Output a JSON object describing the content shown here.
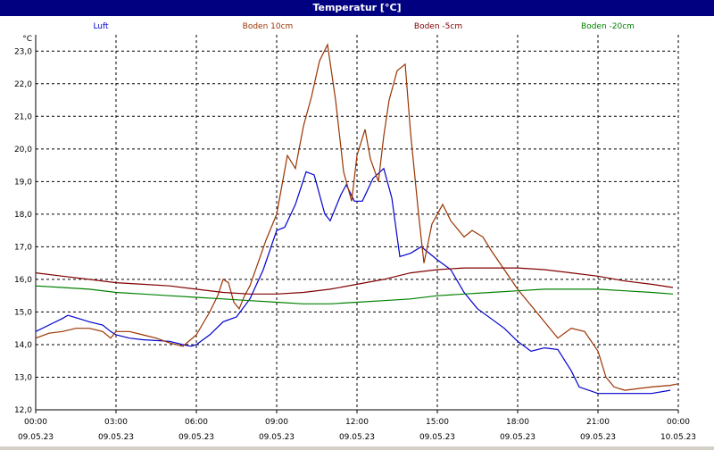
{
  "window_title": "Temperatur [°C]",
  "chart_data": {
    "type": "line",
    "title": "Temperatur [°C]",
    "ylabel": "°C",
    "ylim": [
      12.0,
      23.5
    ],
    "yticks": [
      "12,0",
      "13,0",
      "14,0",
      "15,0",
      "16,0",
      "17,0",
      "18,0",
      "19,0",
      "20,0",
      "21,0",
      "22,0",
      "23,0"
    ],
    "xlim": [
      0,
      24
    ],
    "xticks": [
      {
        "time": "00:00",
        "date": "09.05.23"
      },
      {
        "time": "03:00",
        "date": "09.05.23"
      },
      {
        "time": "06:00",
        "date": "09.05.23"
      },
      {
        "time": "09:00",
        "date": "09.05.23"
      },
      {
        "time": "12:00",
        "date": "09.05.23"
      },
      {
        "time": "15:00",
        "date": "09.05.23"
      },
      {
        "time": "18:00",
        "date": "09.05.23"
      },
      {
        "time": "21:00",
        "date": "09.05.23"
      },
      {
        "time": "00:00",
        "date": "10.05.23"
      }
    ],
    "grid": true,
    "legend_position": "top",
    "series": [
      {
        "name": "Luft",
        "color": "#0000cc",
        "points": [
          [
            0,
            14.4
          ],
          [
            0.5,
            14.6
          ],
          [
            1,
            14.8
          ],
          [
            1.2,
            14.9
          ],
          [
            1.6,
            14.8
          ],
          [
            2,
            14.7
          ],
          [
            2.5,
            14.6
          ],
          [
            2.8,
            14.4
          ],
          [
            3,
            14.3
          ],
          [
            3.5,
            14.2
          ],
          [
            4,
            14.15
          ],
          [
            5,
            14.1
          ],
          [
            5.5,
            14.0
          ],
          [
            5.8,
            13.95
          ],
          [
            6,
            14.0
          ],
          [
            6.5,
            14.3
          ],
          [
            7,
            14.7
          ],
          [
            7.5,
            14.85
          ],
          [
            8,
            15.4
          ],
          [
            8.5,
            16.3
          ],
          [
            9,
            17.5
          ],
          [
            9.3,
            17.6
          ],
          [
            9.7,
            18.3
          ],
          [
            10.1,
            19.3
          ],
          [
            10.4,
            19.2
          ],
          [
            10.8,
            18.0
          ],
          [
            11.0,
            17.8
          ],
          [
            11.4,
            18.6
          ],
          [
            11.6,
            18.9
          ],
          [
            11.9,
            18.4
          ],
          [
            12.2,
            18.4
          ],
          [
            12.6,
            19.1
          ],
          [
            13.0,
            19.4
          ],
          [
            13.3,
            18.5
          ],
          [
            13.6,
            16.7
          ],
          [
            14.0,
            16.8
          ],
          [
            14.4,
            17.0
          ],
          [
            15.0,
            16.6
          ],
          [
            15.5,
            16.3
          ],
          [
            16.0,
            15.6
          ],
          [
            16.5,
            15.1
          ],
          [
            17.0,
            14.8
          ],
          [
            17.5,
            14.5
          ],
          [
            18.0,
            14.1
          ],
          [
            18.5,
            13.8
          ],
          [
            19.0,
            13.9
          ],
          [
            19.5,
            13.85
          ],
          [
            20.0,
            13.2
          ],
          [
            20.3,
            12.7
          ],
          [
            21.0,
            12.5
          ],
          [
            22.0,
            12.5
          ],
          [
            23.0,
            12.5
          ],
          [
            23.7,
            12.6
          ]
        ]
      },
      {
        "name": "Boden 10cm",
        "color": "#993300",
        "points": [
          [
            0,
            14.2
          ],
          [
            0.5,
            14.35
          ],
          [
            1,
            14.4
          ],
          [
            1.5,
            14.5
          ],
          [
            2,
            14.5
          ],
          [
            2.5,
            14.4
          ],
          [
            2.8,
            14.2
          ],
          [
            3,
            14.4
          ],
          [
            3.5,
            14.4
          ],
          [
            4,
            14.3
          ],
          [
            4.5,
            14.2
          ],
          [
            5,
            14.05
          ],
          [
            5.5,
            13.95
          ],
          [
            6,
            14.3
          ],
          [
            6.5,
            15.0
          ],
          [
            6.8,
            15.5
          ],
          [
            7.0,
            16.0
          ],
          [
            7.2,
            15.9
          ],
          [
            7.4,
            15.3
          ],
          [
            7.6,
            15.1
          ],
          [
            7.8,
            15.5
          ],
          [
            8.0,
            15.8
          ],
          [
            8.3,
            16.5
          ],
          [
            8.6,
            17.2
          ],
          [
            9.0,
            18.0
          ],
          [
            9.4,
            19.8
          ],
          [
            9.7,
            19.4
          ],
          [
            10.0,
            20.7
          ],
          [
            10.3,
            21.6
          ],
          [
            10.6,
            22.7
          ],
          [
            10.9,
            23.2
          ],
          [
            11.2,
            21.5
          ],
          [
            11.5,
            19.3
          ],
          [
            11.8,
            18.4
          ],
          [
            12.0,
            19.8
          ],
          [
            12.3,
            20.6
          ],
          [
            12.5,
            19.7
          ],
          [
            12.8,
            19.0
          ],
          [
            13.0,
            20.4
          ],
          [
            13.2,
            21.5
          ],
          [
            13.5,
            22.4
          ],
          [
            13.8,
            22.6
          ],
          [
            14.0,
            20.5
          ],
          [
            14.3,
            18.0
          ],
          [
            14.5,
            16.5
          ],
          [
            14.8,
            17.7
          ],
          [
            15.2,
            18.3
          ],
          [
            15.5,
            17.8
          ],
          [
            16.0,
            17.3
          ],
          [
            16.3,
            17.5
          ],
          [
            16.7,
            17.3
          ],
          [
            17.0,
            16.9
          ],
          [
            17.5,
            16.3
          ],
          [
            18.0,
            15.7
          ],
          [
            18.5,
            15.2
          ],
          [
            19.0,
            14.7
          ],
          [
            19.5,
            14.2
          ],
          [
            20.0,
            14.5
          ],
          [
            20.5,
            14.4
          ],
          [
            21.0,
            13.8
          ],
          [
            21.3,
            13.0
          ],
          [
            21.6,
            12.7
          ],
          [
            22.0,
            12.6
          ],
          [
            23.0,
            12.7
          ],
          [
            23.7,
            12.75
          ],
          [
            24,
            12.8
          ]
        ]
      },
      {
        "name": "Boden -5cm",
        "color": "#800000",
        "points": [
          [
            0,
            16.2
          ],
          [
            1,
            16.1
          ],
          [
            2,
            16.0
          ],
          [
            3,
            15.9
          ],
          [
            4,
            15.85
          ],
          [
            5,
            15.8
          ],
          [
            6,
            15.7
          ],
          [
            7,
            15.6
          ],
          [
            8,
            15.55
          ],
          [
            9,
            15.55
          ],
          [
            10,
            15.6
          ],
          [
            11,
            15.7
          ],
          [
            12,
            15.85
          ],
          [
            13,
            16.0
          ],
          [
            14,
            16.2
          ],
          [
            15,
            16.3
          ],
          [
            16,
            16.35
          ],
          [
            17,
            16.35
          ],
          [
            18,
            16.35
          ],
          [
            19,
            16.3
          ],
          [
            20,
            16.2
          ],
          [
            21,
            16.1
          ],
          [
            22,
            15.95
          ],
          [
            23,
            15.85
          ],
          [
            23.8,
            15.75
          ]
        ]
      },
      {
        "name": "Boden -20cm",
        "color": "#008000",
        "points": [
          [
            0,
            15.8
          ],
          [
            1,
            15.75
          ],
          [
            2,
            15.7
          ],
          [
            3,
            15.6
          ],
          [
            4,
            15.55
          ],
          [
            5,
            15.5
          ],
          [
            6,
            15.45
          ],
          [
            7,
            15.4
          ],
          [
            8,
            15.35
          ],
          [
            9,
            15.3
          ],
          [
            10,
            15.25
          ],
          [
            11,
            15.25
          ],
          [
            12,
            15.3
          ],
          [
            13,
            15.35
          ],
          [
            14,
            15.4
          ],
          [
            15,
            15.5
          ],
          [
            16,
            15.55
          ],
          [
            17,
            15.6
          ],
          [
            18,
            15.65
          ],
          [
            19,
            15.7
          ],
          [
            20,
            15.7
          ],
          [
            21,
            15.7
          ],
          [
            22,
            15.65
          ],
          [
            23,
            15.6
          ],
          [
            23.8,
            15.55
          ]
        ]
      }
    ]
  }
}
